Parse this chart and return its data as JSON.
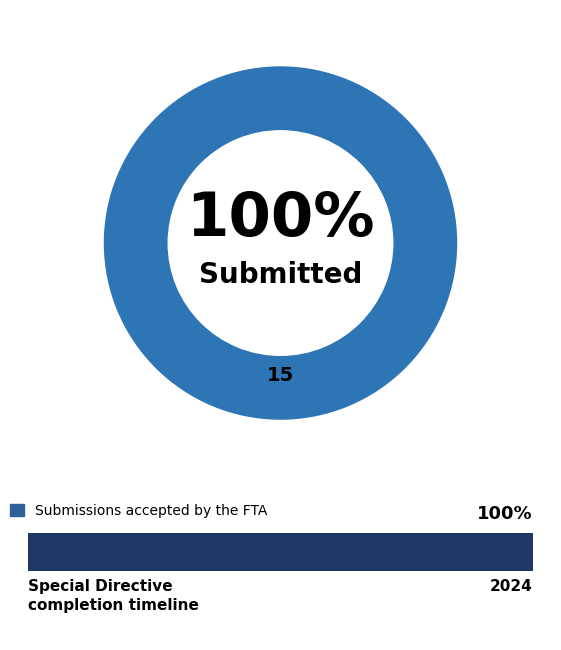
{
  "donut_color": "#2E75B6",
  "donut_bg_color": "#ffffff",
  "center_text_pct": "100%",
  "center_text_label": "Submitted",
  "count_label": "15",
  "legend_color": "#2E6099",
  "legend_text": "Submissions accepted by the FTA",
  "bar_color": "#1F3864",
  "bar_pct_label": "100%",
  "bar_end_label": "2024",
  "bar_start_label": "Special Directive\ncompletion timeline",
  "background_color": "#ffffff",
  "pct_fontsize": 44,
  "submitted_fontsize": 20,
  "count_fontsize": 14,
  "legend_fontsize": 10,
  "bar_label_fontsize": 11,
  "bar_pct_fontsize": 13,
  "donut_width": 0.38
}
